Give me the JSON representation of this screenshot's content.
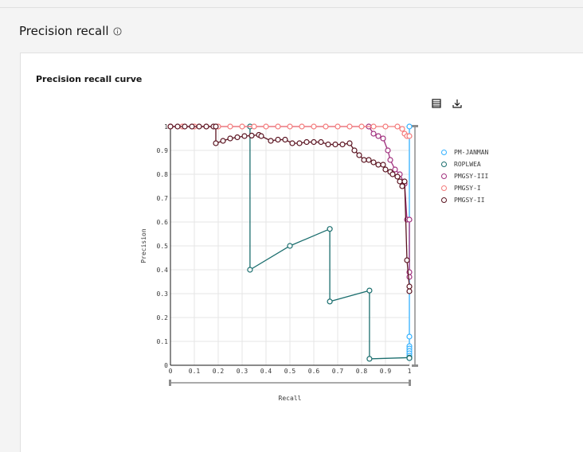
{
  "header": {
    "title": "Precision recall",
    "info_icon": "info-icon"
  },
  "panel": {
    "title": "Precision recall curve",
    "toolbar": [
      {
        "icon": "table-icon"
      },
      {
        "icon": "download-icon"
      }
    ]
  },
  "chart_data": {
    "type": "line",
    "title": "",
    "xlabel": "Recall",
    "ylabel": "Precision",
    "xlim": [
      0,
      1
    ],
    "ylim": [
      0,
      1
    ],
    "x_ticks": [
      "0",
      "0.1",
      "0.2",
      "0.3",
      "0.4",
      "0.5",
      "0.6",
      "0.7",
      "0.8",
      "0.9",
      "1"
    ],
    "y_ticks": [
      "0",
      "0.1",
      "0.2",
      "0.3",
      "0.4",
      "0.5",
      "0.6",
      "0.7",
      "0.8",
      "0.9",
      "1"
    ],
    "grid": true,
    "legend_position": "right",
    "series": [
      {
        "name": "PM-JANMAN",
        "color": "#33b1ff",
        "points": [
          [
            1,
            1
          ],
          [
            1,
            0.12
          ],
          [
            1,
            0.08
          ],
          [
            1,
            0.07
          ],
          [
            1,
            0.06
          ],
          [
            1,
            0.05
          ],
          [
            1,
            0.04
          ],
          [
            1,
            0.03
          ]
        ]
      },
      {
        "name": "ROPLWEA",
        "color": "#1b6e6e",
        "points": [
          [
            0.333,
            1
          ],
          [
            0.333,
            0.4
          ],
          [
            0.5,
            0.5
          ],
          [
            0.667,
            0.571
          ],
          [
            0.667,
            0.267
          ],
          [
            0.833,
            0.313
          ],
          [
            0.833,
            0.027
          ],
          [
            1,
            0.032
          ],
          [
            1,
            0.03
          ]
        ]
      },
      {
        "name": "PMGSY-III",
        "color": "#a0307e",
        "points": [
          [
            0,
            1
          ],
          [
            0.83,
            1
          ],
          [
            0.85,
            0.97
          ],
          [
            0.87,
            0.96
          ],
          [
            0.89,
            0.95
          ],
          [
            0.91,
            0.9
          ],
          [
            0.92,
            0.86
          ],
          [
            0.94,
            0.82
          ],
          [
            0.96,
            0.8
          ],
          [
            0.98,
            0.76
          ],
          [
            0.99,
            0.61
          ],
          [
            1,
            0.61
          ],
          [
            1,
            0.39
          ],
          [
            1,
            0.37
          ]
        ]
      },
      {
        "name": "PMGSY-I",
        "color": "#f47a7a",
        "points": [
          [
            0,
            1
          ],
          [
            0.05,
            1
          ],
          [
            0.1,
            1
          ],
          [
            0.15,
            1
          ],
          [
            0.2,
            1
          ],
          [
            0.25,
            1
          ],
          [
            0.3,
            1
          ],
          [
            0.35,
            1
          ],
          [
            0.4,
            1
          ],
          [
            0.45,
            1
          ],
          [
            0.5,
            1
          ],
          [
            0.55,
            1
          ],
          [
            0.6,
            1
          ],
          [
            0.65,
            1
          ],
          [
            0.7,
            1
          ],
          [
            0.75,
            1
          ],
          [
            0.8,
            1
          ],
          [
            0.85,
            1
          ],
          [
            0.9,
            1
          ],
          [
            0.95,
            1
          ],
          [
            0.97,
            0.99
          ],
          [
            0.98,
            0.97
          ],
          [
            0.99,
            0.96
          ],
          [
            1,
            0.96
          ]
        ]
      },
      {
        "name": "PMGSY-II",
        "color": "#5a1320",
        "points": [
          [
            0,
            1
          ],
          [
            0.03,
            1
          ],
          [
            0.06,
            1
          ],
          [
            0.09,
            1
          ],
          [
            0.12,
            1
          ],
          [
            0.15,
            1
          ],
          [
            0.18,
            1
          ],
          [
            0.19,
            1
          ],
          [
            0.19,
            0.93
          ],
          [
            0.22,
            0.94
          ],
          [
            0.25,
            0.95
          ],
          [
            0.28,
            0.955
          ],
          [
            0.31,
            0.96
          ],
          [
            0.34,
            0.962
          ],
          [
            0.37,
            0.965
          ],
          [
            0.38,
            0.96
          ],
          [
            0.42,
            0.94
          ],
          [
            0.45,
            0.945
          ],
          [
            0.48,
            0.945
          ],
          [
            0.51,
            0.93
          ],
          [
            0.54,
            0.93
          ],
          [
            0.57,
            0.935
          ],
          [
            0.6,
            0.935
          ],
          [
            0.63,
            0.935
          ],
          [
            0.66,
            0.925
          ],
          [
            0.69,
            0.925
          ],
          [
            0.72,
            0.925
          ],
          [
            0.75,
            0.93
          ],
          [
            0.77,
            0.9
          ],
          [
            0.79,
            0.88
          ],
          [
            0.81,
            0.86
          ],
          [
            0.83,
            0.86
          ],
          [
            0.85,
            0.85
          ],
          [
            0.87,
            0.84
          ],
          [
            0.89,
            0.84
          ],
          [
            0.9,
            0.82
          ],
          [
            0.92,
            0.81
          ],
          [
            0.93,
            0.8
          ],
          [
            0.95,
            0.79
          ],
          [
            0.96,
            0.77
          ],
          [
            0.97,
            0.75
          ],
          [
            0.98,
            0.77
          ],
          [
            0.99,
            0.44
          ],
          [
            1,
            0.33
          ],
          [
            1,
            0.31
          ]
        ]
      }
    ]
  }
}
